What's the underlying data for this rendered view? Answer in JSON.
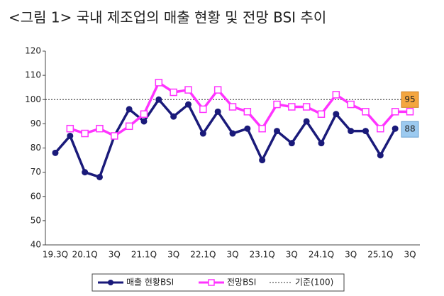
{
  "chart_data": {
    "type": "line",
    "title": "<그림 1> 국내 제조업의 매출 현황 및 전망 BSI 추이",
    "categories": [
      "19.3Q",
      null,
      "20.1Q",
      null,
      "3Q",
      null,
      "21.1Q",
      null,
      "3Q",
      null,
      "22.1Q",
      null,
      "3Q",
      null,
      "23.1Q",
      null,
      "3Q",
      null,
      "24.1Q",
      null,
      "3Q",
      null,
      "25.1Q",
      null,
      "3Q"
    ],
    "series": [
      {
        "name": "매출 현황BSI",
        "color": "#1a1a7a",
        "marker": "circle",
        "values": [
          78,
          85,
          70,
          68,
          85,
          96,
          91,
          100,
          93,
          98,
          86,
          95,
          86,
          88,
          75,
          87,
          82,
          91,
          82,
          94,
          87,
          87,
          77,
          88,
          null
        ]
      },
      {
        "name": "전망BSI",
        "color": "#ff33ff",
        "marker": "square",
        "values": [
          null,
          88,
          86,
          88,
          85,
          89,
          94,
          107,
          103,
          104,
          96,
          104,
          97,
          95,
          88,
          98,
          97,
          97,
          94,
          102,
          98,
          95,
          88,
          95,
          95
        ]
      }
    ],
    "reference": {
      "value": 100,
      "label": "기준(100)"
    },
    "ylim": [
      40,
      120
    ],
    "yticks": [
      40,
      50,
      60,
      70,
      80,
      90,
      100,
      110,
      120
    ],
    "grid": false
  }
}
